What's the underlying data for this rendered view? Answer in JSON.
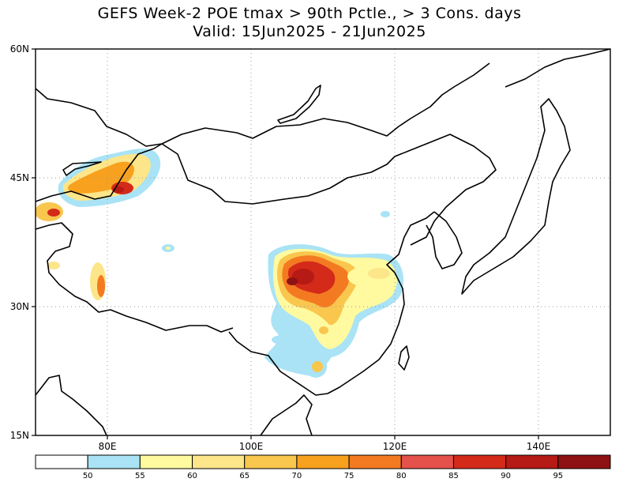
{
  "title": {
    "line1": "GEFS Week-2 POE tmax > 90th Pctle., > 3 Cons. days",
    "line2": "Valid: 15Jun2025 - 21Jun2025"
  },
  "map": {
    "lon_range": [
      70,
      150
    ],
    "lat_range": [
      15,
      60
    ],
    "lat_ticks": [
      {
        "value": 60,
        "label": "60N"
      },
      {
        "value": 45,
        "label": "45N"
      },
      {
        "value": 30,
        "label": "30N"
      },
      {
        "value": 15,
        "label": "15N"
      }
    ],
    "lon_ticks": [
      {
        "value": 80,
        "label": "80E"
      },
      {
        "value": 100,
        "label": "100E"
      },
      {
        "value": 120,
        "label": "120E"
      },
      {
        "value": 140,
        "label": "140E"
      }
    ],
    "grid": "dotted"
  },
  "colorbar": {
    "labels": [
      "50",
      "55",
      "60",
      "65",
      "70",
      "75",
      "80",
      "85",
      "90",
      "95"
    ],
    "colors": [
      "#ffffff",
      "#a9e3f5",
      "#fffaa0",
      "#fde58a",
      "#f9c64e",
      "#f7a11f",
      "#f47a21",
      "#e5514b",
      "#d32a1a",
      "#b51a14",
      "#8e1113"
    ]
  }
}
